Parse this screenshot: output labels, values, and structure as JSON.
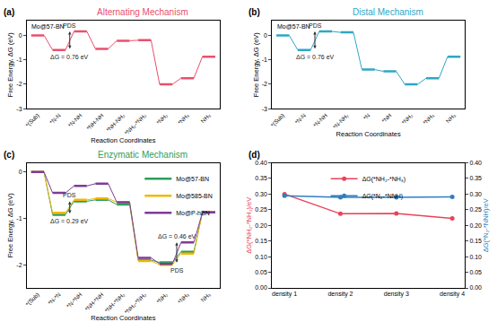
{
  "chart_data": [
    {
      "panel_label": "(a)",
      "type": "step",
      "title": "Alternating Mechanism",
      "subtitle": "Mo@57-BN",
      "x_label": "Reaction Coordinates",
      "y_label": "Free Energy, ΔG (eV)",
      "categories": [
        "*(Sub)",
        "*N-N",
        "*N-NH",
        "*NH-NH",
        "*NH-NH₂",
        "*NH₂-*NH₂",
        "*NH₂",
        "*NH₃",
        "NH₃"
      ],
      "values": [
        0,
        -0.6,
        0.16,
        -0.55,
        -0.22,
        -0.2,
        -2.0,
        -1.75,
        -0.87
      ],
      "color": "#e8506e",
      "ylim": [
        -3,
        0.6
      ],
      "yticks": [
        -3,
        -2,
        -1,
        0
      ],
      "grid": false,
      "annotations": [
        {
          "category": "*N-NH",
          "texts": [
            "PDS",
            "ΔG = 0.76 eV"
          ]
        }
      ]
    },
    {
      "panel_label": "(b)",
      "type": "step",
      "title": "Distal Mechanism",
      "subtitle": "Mo@57-BN",
      "x_label": "Reaction Coordinates",
      "y_label": "Free Energy, ΔG (eV)",
      "categories": [
        "*(Sub)",
        "*N-N",
        "*N-NH",
        "*N-NH₂",
        "*N",
        "*NH",
        "*NH₂",
        "*NH₃",
        "NH₃"
      ],
      "values": [
        0,
        -0.6,
        0.16,
        0.12,
        -1.4,
        -1.47,
        -2.0,
        -1.75,
        -0.87
      ],
      "color": "#2fa6c6",
      "ylim": [
        -3,
        0.6
      ],
      "yticks": [
        -3,
        -2,
        -1,
        0
      ],
      "grid": false,
      "annotations": [
        {
          "category": "*N-NH",
          "texts": [
            "PDS",
            "ΔG = 0.76 eV"
          ]
        }
      ]
    },
    {
      "panel_label": "(c)",
      "type": "step",
      "title": "Enzymatic Mechanism",
      "x_label": "Reaction Coordinates",
      "y_label": "Free Energy, ΔG (eV)",
      "categories": [
        "*(Sub)",
        "*N-*N",
        "*N-*NH",
        "*NH-*NH",
        "*NH-*NH₂",
        "*NH₂-*NH₂",
        "*NH₂",
        "*NH₃",
        "NH₃"
      ],
      "series": [
        {
          "name": "Mo@57-BN",
          "color": "#2e9e5b",
          "values": [
            0,
            -0.92,
            -0.63,
            -0.6,
            -0.7,
            -1.9,
            -1.95,
            -1.72,
            -0.87
          ]
        },
        {
          "name": "Mo@585-BN",
          "color": "#f2b705",
          "values": [
            0,
            -0.88,
            -0.6,
            -0.57,
            -0.65,
            -1.92,
            -2.0,
            -1.76,
            -0.87
          ]
        },
        {
          "name": "Mo@P-hBN",
          "color": "#7d3c98",
          "values": [
            0,
            -0.45,
            -0.3,
            -0.25,
            -0.65,
            -1.85,
            -1.98,
            -1.52,
            -0.87
          ]
        }
      ],
      "ylim": [
        -2.5,
        0.2
      ],
      "yticks": [
        -2,
        -1,
        0
      ],
      "grid": false,
      "legend": "top right",
      "annotations": [
        {
          "category": "*N-*NH",
          "series": "Mo@57-BN",
          "texts": [
            "PDS",
            "ΔG = 0.29 eV"
          ]
        },
        {
          "category": "*NH₃",
          "series": "Mo@P-hBN",
          "texts": [
            "ΔG = 0.46 eV",
            "PDS"
          ]
        }
      ]
    },
    {
      "panel_label": "(d)",
      "type": "line",
      "y_label": "ΔG(*NH₂-*NH₃)/eV",
      "y2_label": "ΔG(*N₂-*NNH)/eV",
      "categories": [
        "density 1",
        "density 2",
        "density 3",
        "density 4"
      ],
      "series": [
        {
          "name": "ΔG(*NH₂-*NH₃)",
          "color": "#e8435a",
          "marker": "circle",
          "values": [
            0.3,
            0.237,
            0.238,
            0.222
          ]
        },
        {
          "name": "ΔG(*N₂-*NNH)",
          "color": "#2f7fc1",
          "marker": "circle",
          "axis": "y2",
          "values": [
            0.295,
            0.29,
            0.29,
            0.291
          ]
        }
      ],
      "ylim": [
        0,
        0.4
      ],
      "yticks": [
        {
          "value": 0,
          "label": "0.00"
        },
        {
          "value": 0.05,
          "label": "0.05"
        },
        {
          "value": 0.1,
          "label": "0.10"
        },
        {
          "value": 0.15,
          "label": "0.15"
        },
        {
          "value": 0.2,
          "label": "0.20"
        },
        {
          "value": 0.25,
          "label": "0.25"
        },
        {
          "value": 0.3,
          "label": "0.30"
        },
        {
          "value": 0.35,
          "label": "0.35"
        },
        {
          "value": 0.4,
          "label": "0.40"
        }
      ],
      "y2lim": [
        0,
        0.4
      ],
      "y2ticks": [
        {
          "value": 0,
          "label": "0.00"
        },
        {
          "value": 0.05,
          "label": "0.05"
        },
        {
          "value": 0.1,
          "label": "0.10"
        },
        {
          "value": 0.15,
          "label": "0.15"
        },
        {
          "value": 0.2,
          "label": "0.20"
        },
        {
          "value": 0.25,
          "label": "0.25"
        },
        {
          "value": 0.3,
          "label": "0.30"
        },
        {
          "value": 0.35,
          "label": "0.35"
        },
        {
          "value": 0.4,
          "label": "0.40"
        }
      ],
      "grid": false,
      "legend": "top"
    }
  ]
}
